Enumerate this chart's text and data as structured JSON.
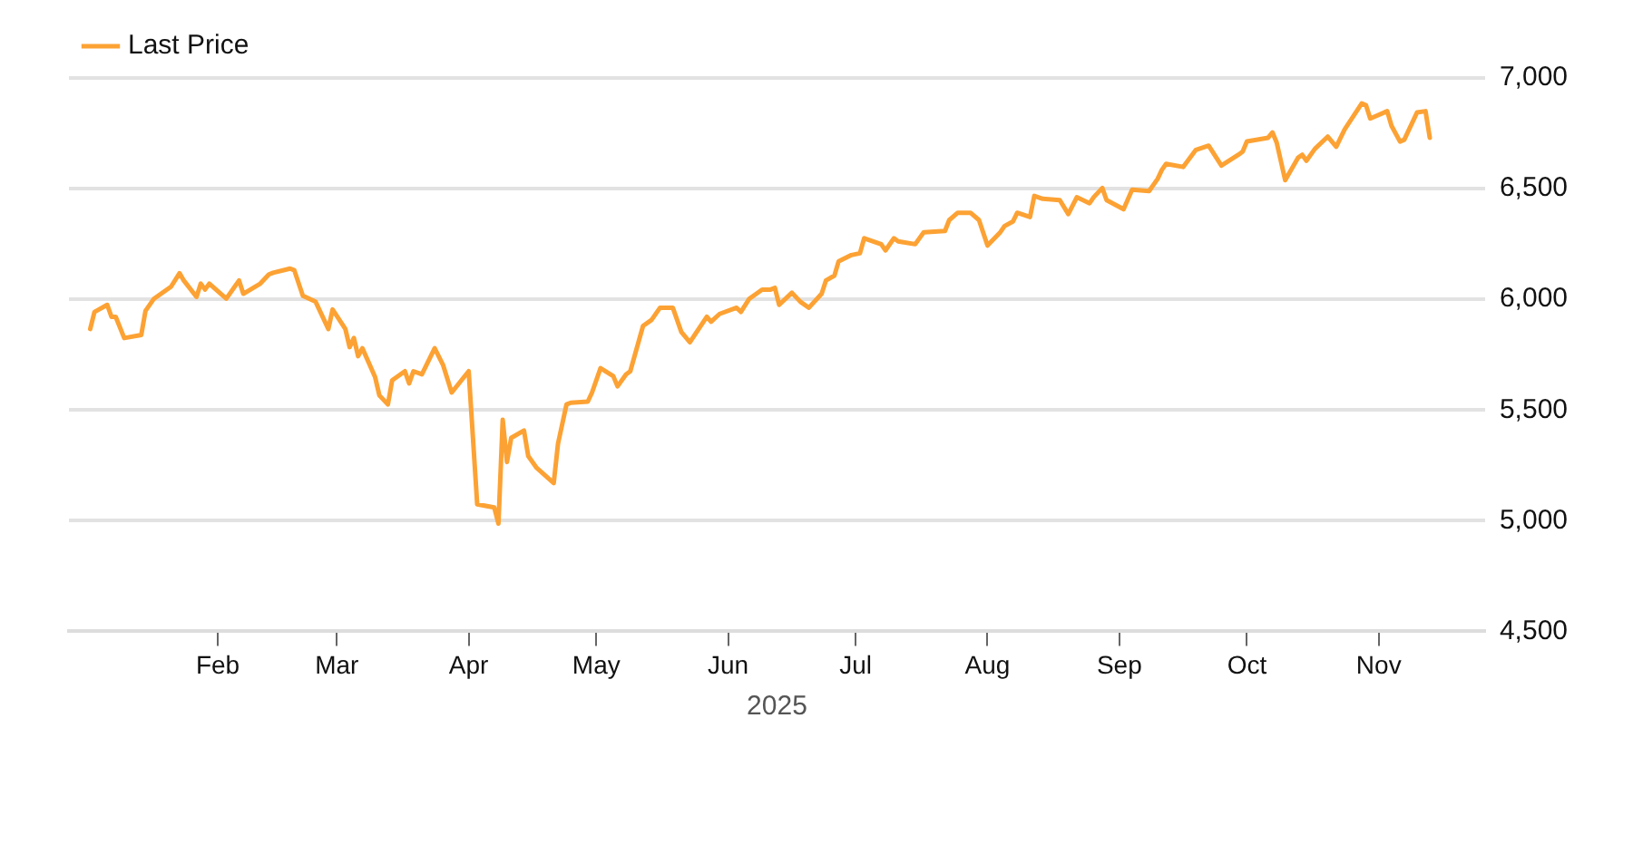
{
  "chart_data": {
    "type": "line",
    "xlabel": "2025",
    "legend": "top left",
    "grid": "y",
    "marker": "none",
    "line_style": "solid",
    "xlim": [
      "2024-12-28",
      "2025-11-26"
    ],
    "xticks": [
      {
        "value": "2025-02-01",
        "label": "Feb"
      },
      {
        "value": "2025-03-01",
        "label": "Mar"
      },
      {
        "value": "2025-04-01",
        "label": "Apr"
      },
      {
        "value": "2025-05-01",
        "label": "May"
      },
      {
        "value": "2025-06-01",
        "label": "Jun"
      },
      {
        "value": "2025-07-01",
        "label": "Jul"
      },
      {
        "value": "2025-08-01",
        "label": "Aug"
      },
      {
        "value": "2025-09-01",
        "label": "Sep"
      },
      {
        "value": "2025-10-01",
        "label": "Oct"
      },
      {
        "value": "2025-11-01",
        "label": "Nov"
      }
    ],
    "ylim": [
      4500,
      7000
    ],
    "yticks": [
      {
        "value": 4500,
        "label": "4,500"
      },
      {
        "value": 5000,
        "label": "5,000"
      },
      {
        "value": 5500,
        "label": "5,500"
      },
      {
        "value": 6000,
        "label": "6,000"
      },
      {
        "value": 6500,
        "label": "6,500"
      },
      {
        "value": 7000,
        "label": "7,000"
      }
    ],
    "x": [
      "2025-01-02",
      "2025-01-03",
      "2025-01-06",
      "2025-01-07",
      "2025-01-08",
      "2025-01-10",
      "2025-01-14",
      "2025-01-15",
      "2025-01-17",
      "2025-01-21",
      "2025-01-23",
      "2025-01-24",
      "2025-01-27",
      "2025-01-28",
      "2025-01-29",
      "2025-01-30",
      "2025-02-03",
      "2025-02-06",
      "2025-02-07",
      "2025-02-11",
      "2025-02-13",
      "2025-02-14",
      "2025-02-18",
      "2025-02-19",
      "2025-02-21",
      "2025-02-24",
      "2025-02-25",
      "2025-02-27",
      "2025-02-28",
      "2025-03-03",
      "2025-03-04",
      "2025-03-05",
      "2025-03-06",
      "2025-03-07",
      "2025-03-10",
      "2025-03-11",
      "2025-03-13",
      "2025-03-14",
      "2025-03-17",
      "2025-03-18",
      "2025-03-19",
      "2025-03-21",
      "2025-03-24",
      "2025-03-26",
      "2025-03-28",
      "2025-04-01",
      "2025-04-03",
      "2025-04-07",
      "2025-04-08",
      "2025-04-09",
      "2025-04-10",
      "2025-04-11",
      "2025-04-14",
      "2025-04-15",
      "2025-04-17",
      "2025-04-21",
      "2025-04-22",
      "2025-04-24",
      "2025-04-25",
      "2025-04-29",
      "2025-04-30",
      "2025-05-02",
      "2025-05-05",
      "2025-05-06",
      "2025-05-08",
      "2025-05-09",
      "2025-05-12",
      "2025-05-14",
      "2025-05-16",
      "2025-05-19",
      "2025-05-21",
      "2025-05-23",
      "2025-05-27",
      "2025-05-28",
      "2025-05-30",
      "2025-06-03",
      "2025-06-04",
      "2025-06-06",
      "2025-06-09",
      "2025-06-11",
      "2025-06-12",
      "2025-06-13",
      "2025-06-16",
      "2025-06-18",
      "2025-06-20",
      "2025-06-23",
      "2025-06-24",
      "2025-06-26",
      "2025-06-27",
      "2025-06-30",
      "2025-07-02",
      "2025-07-03",
      "2025-07-07",
      "2025-07-08",
      "2025-07-10",
      "2025-07-11",
      "2025-07-15",
      "2025-07-17",
      "2025-07-22",
      "2025-07-23",
      "2025-07-25",
      "2025-07-28",
      "2025-07-30",
      "2025-08-01",
      "2025-08-04",
      "2025-08-05",
      "2025-08-07",
      "2025-08-08",
      "2025-08-11",
      "2025-08-12",
      "2025-08-14",
      "2025-08-18",
      "2025-08-20",
      "2025-08-22",
      "2025-08-25",
      "2025-08-26",
      "2025-08-28",
      "2025-08-29",
      "2025-09-02",
      "2025-09-04",
      "2025-09-08",
      "2025-09-10",
      "2025-09-11",
      "2025-09-12",
      "2025-09-16",
      "2025-09-19",
      "2025-09-22",
      "2025-09-25",
      "2025-09-29",
      "2025-09-30",
      "2025-10-01",
      "2025-10-06",
      "2025-10-07",
      "2025-10-08",
      "2025-10-10",
      "2025-10-13",
      "2025-10-14",
      "2025-10-15",
      "2025-10-17",
      "2025-10-20",
      "2025-10-22",
      "2025-10-24",
      "2025-10-28",
      "2025-10-29",
      "2025-10-30",
      "2025-11-03",
      "2025-11-04",
      "2025-11-06",
      "2025-11-07",
      "2025-11-10",
      "2025-11-12",
      "2025-11-13"
    ],
    "series": [
      {
        "name": "Last Price",
        "color": "#fca234",
        "values": [
          5866,
          5943,
          5975,
          5921,
          5921,
          5825,
          5839,
          5948,
          6003,
          6057,
          6118,
          6085,
          6011,
          6071,
          6044,
          6071,
          6003,
          6085,
          6025,
          6071,
          6112,
          6120,
          6139,
          6131,
          6016,
          5989,
          5948,
          5866,
          5954,
          5866,
          5784,
          5825,
          5743,
          5779,
          5648,
          5566,
          5525,
          5634,
          5675,
          5620,
          5675,
          5661,
          5779,
          5702,
          5579,
          5675,
          5074,
          5060,
          4987,
          5456,
          5265,
          5374,
          5407,
          5292,
          5238,
          5170,
          5347,
          5525,
          5533,
          5538,
          5579,
          5689,
          5653,
          5607,
          5661,
          5675,
          5880,
          5907,
          5962,
          5962,
          5853,
          5806,
          5921,
          5899,
          5934,
          5962,
          5943,
          6003,
          6044,
          6044,
          6052,
          5975,
          6030,
          5989,
          5962,
          6025,
          6085,
          6107,
          6172,
          6200,
          6208,
          6276,
          6249,
          6221,
          6276,
          6262,
          6249,
          6303,
          6309,
          6358,
          6391,
          6391,
          6358,
          6243,
          6303,
          6331,
          6352,
          6391,
          6372,
          6467,
          6454,
          6448,
          6385,
          6461,
          6434,
          6462,
          6503,
          6448,
          6407,
          6495,
          6489,
          6544,
          6585,
          6612,
          6598,
          6675,
          6694,
          6604,
          6653,
          6667,
          6713,
          6730,
          6754,
          6708,
          6538,
          6639,
          6653,
          6626,
          6680,
          6735,
          6689,
          6768,
          6885,
          6877,
          6817,
          6850,
          6784,
          6713,
          6721,
          6844,
          6850,
          6730
        ]
      }
    ]
  }
}
